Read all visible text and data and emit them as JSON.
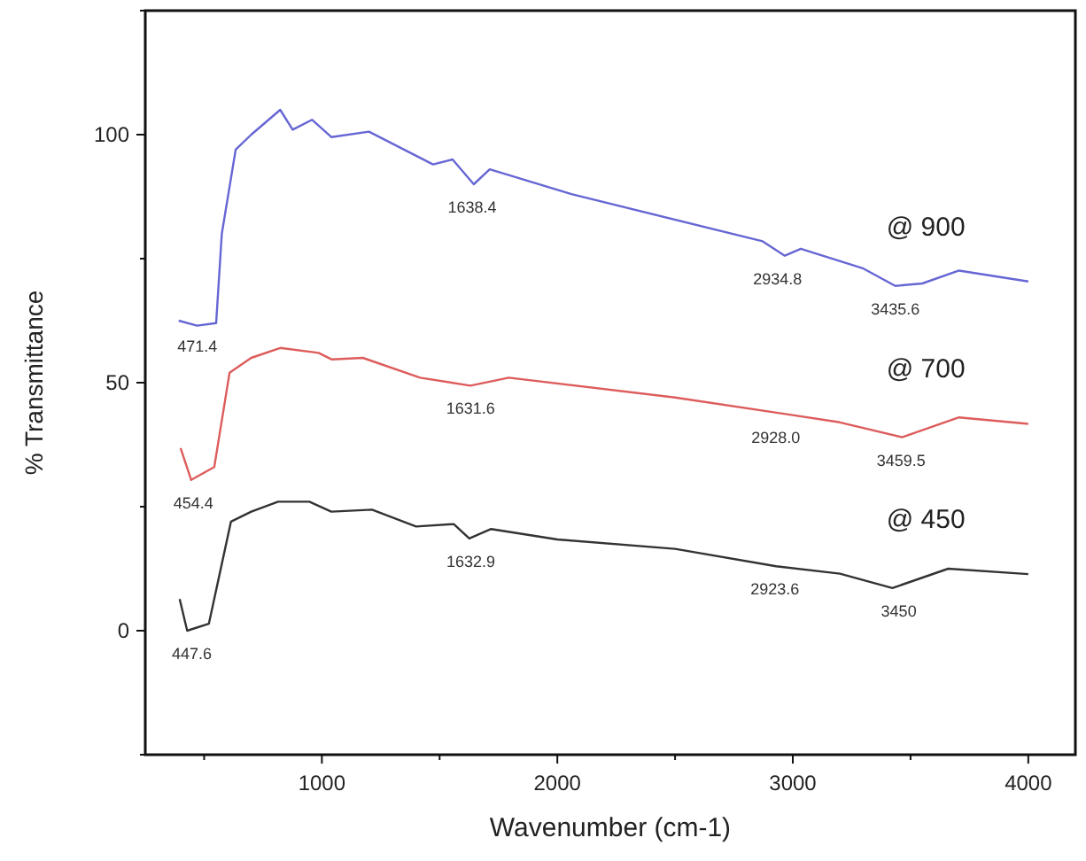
{
  "chart_data": {
    "type": "line",
    "xlabel": "Wavenumber (cm-1)",
    "ylabel": "% Transmittance",
    "xlim": [
      250,
      4200
    ],
    "ylim": [
      -25,
      125
    ],
    "xticks": [
      {
        "value": 500,
        "label": null
      },
      1000,
      {
        "value": 1500,
        "label": null
      },
      2000,
      {
        "value": 2500,
        "label": null
      },
      3000,
      {
        "value": 3500,
        "label": null
      },
      4000
    ],
    "yticks": [
      {
        "value": -25,
        "label": null
      },
      0,
      {
        "value": 25,
        "label": null
      },
      50,
      {
        "value": 75,
        "label": null
      },
      100,
      {
        "value": 125,
        "label": null
      }
    ],
    "grid": false,
    "marker": "none",
    "line_style": "solid",
    "series": [
      {
        "name": "@ 900",
        "color": "#6666d4",
        "x": [
          392,
          470,
          551,
          575,
          634,
          700,
          823,
          876,
          958,
          1041,
          1200,
          1472,
          1555,
          1645,
          1713,
          2060,
          2872,
          2966,
          3034,
          3300,
          3435,
          3550,
          3706,
          4000
        ],
        "values": [
          62.5,
          61.5,
          62,
          80,
          97,
          100,
          105,
          101,
          103,
          99.5,
          100.6,
          94,
          95,
          90,
          93,
          88,
          78.5,
          75.6,
          77,
          73,
          69.5,
          70,
          72.6,
          70.4
        ]
      },
      {
        "name": "@ 700",
        "color": "#dd5c5c",
        "x": [
          400,
          445,
          543,
          608,
          700,
          823,
          986,
          1041,
          1174,
          1417,
          1631,
          1794,
          2500,
          2981,
          3200,
          3464,
          3706,
          4000
        ],
        "values": [
          36.8,
          30.4,
          33,
          52,
          55,
          57,
          56,
          54.7,
          55,
          51,
          49.4,
          51,
          47,
          43.6,
          42,
          39,
          43,
          41.7
        ]
      },
      {
        "name": "@ 450",
        "color": "#333333",
        "x": [
          396,
          428,
          520,
          614,
          700,
          814,
          947,
          1040,
          1213,
          1400,
          1560,
          1626,
          1719,
          2000,
          2500,
          2929,
          3200,
          3423,
          3660,
          4000
        ],
        "values": [
          6.4,
          0,
          1.4,
          22,
          24,
          26,
          26,
          24,
          24.4,
          21,
          21.5,
          18.6,
          20.5,
          18.4,
          16.5,
          13,
          11.5,
          8.6,
          12.5,
          11.4
        ]
      }
    ],
    "annotations": [
      {
        "text": "471.4",
        "x": 471.4,
        "y": 62
      },
      {
        "text": "1638.4",
        "x": 1638.4,
        "y": 90
      },
      {
        "text": "2934.8",
        "x": 2934.8,
        "y": 75.6
      },
      {
        "text": "3435.6",
        "x": 3435.6,
        "y": 69.5
      },
      {
        "text": "454.4",
        "x": 454.4,
        "y": 30.4
      },
      {
        "text": "1631.6",
        "x": 1631.6,
        "y": 49.4
      },
      {
        "text": "2928.0",
        "x": 2928.0,
        "y": 43.6
      },
      {
        "text": "3459.5",
        "x": 3459.5,
        "y": 39
      },
      {
        "text": "447.6",
        "x": 447.6,
        "y": 0
      },
      {
        "text": "1632.9",
        "x": 1632.9,
        "y": 18.6
      },
      {
        "text": "2923.6",
        "x": 2923.6,
        "y": 13
      },
      {
        "text": "3450",
        "x": 3450,
        "y": 8.6
      }
    ]
  }
}
